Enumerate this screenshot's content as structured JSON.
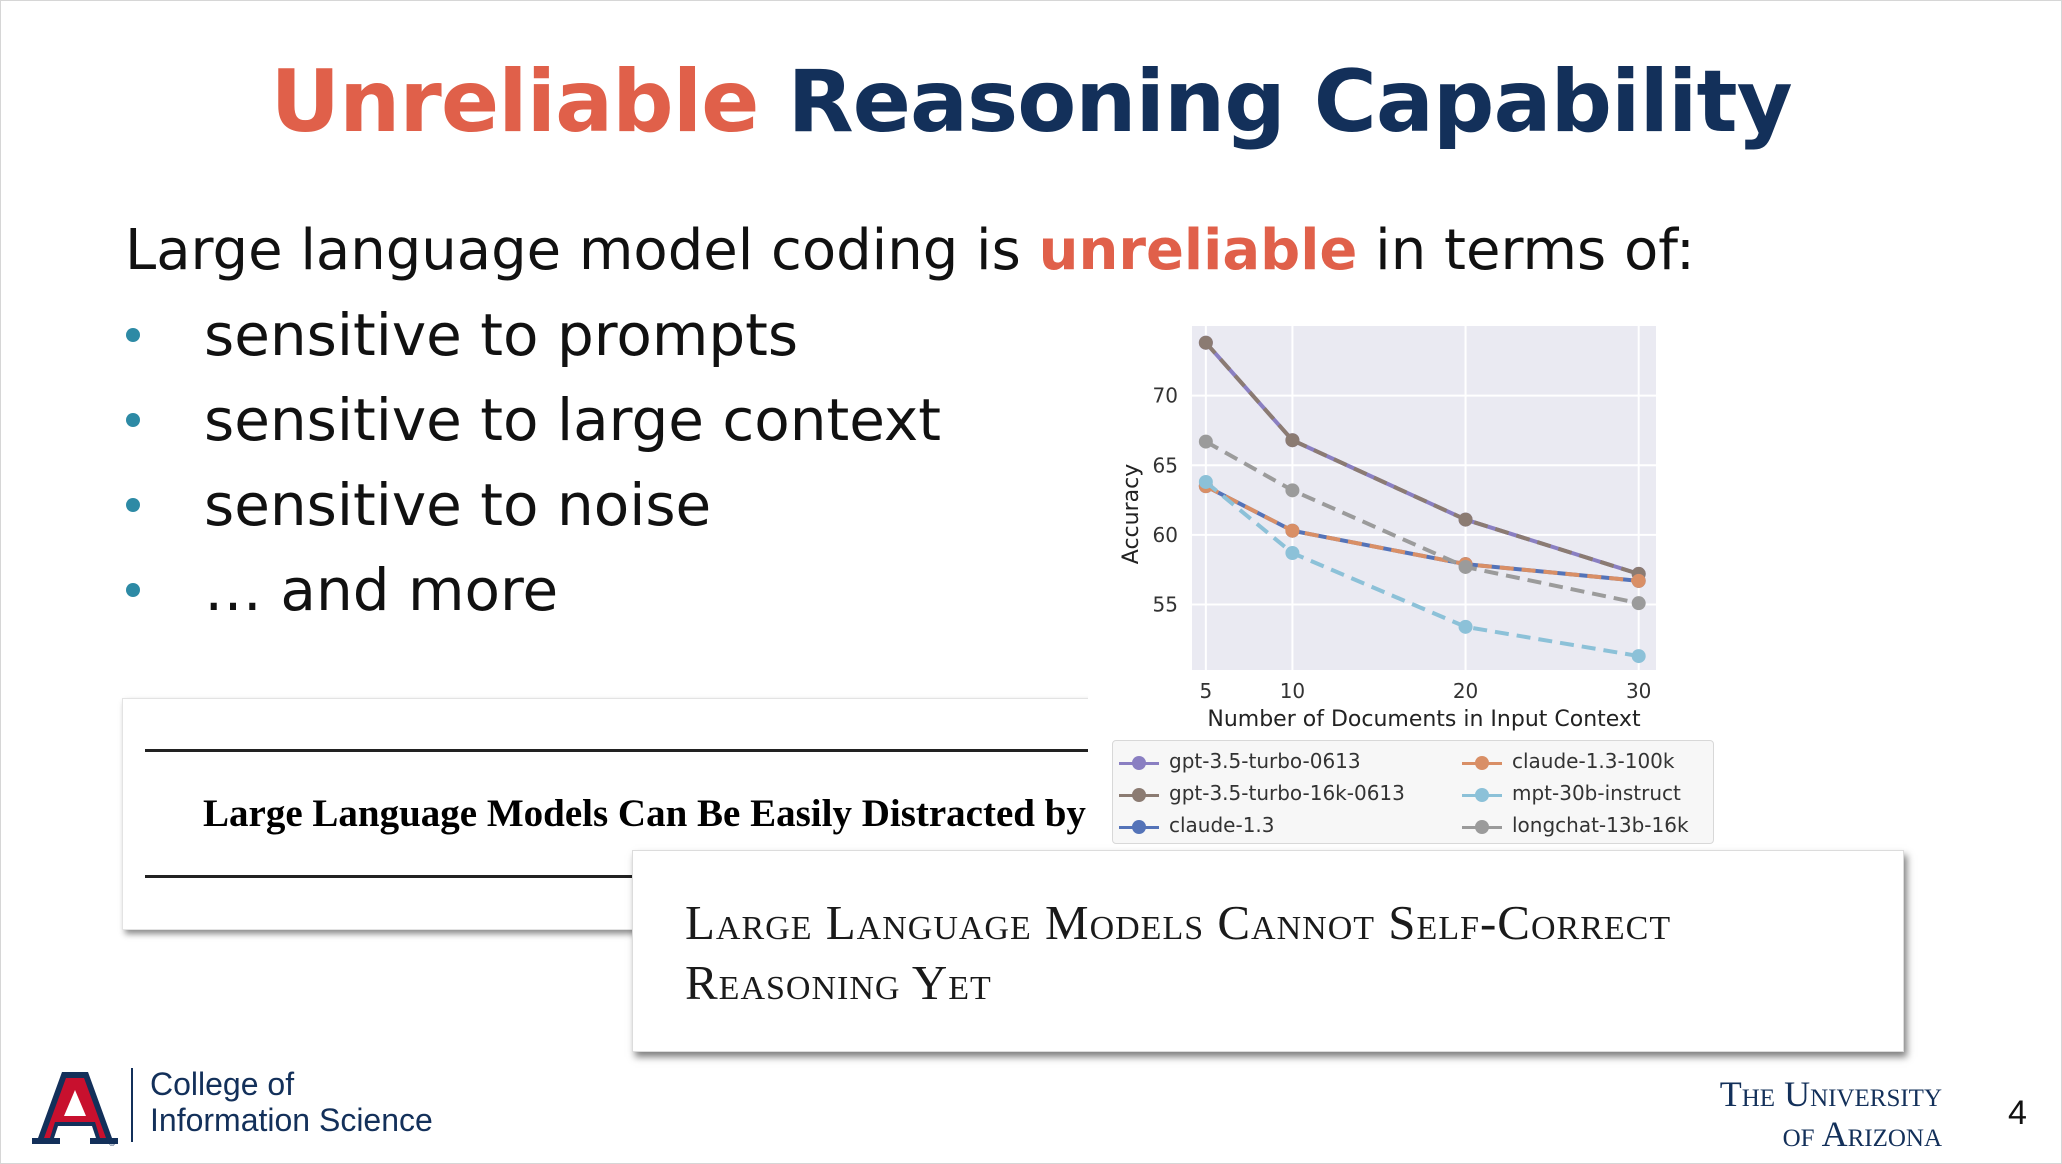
{
  "slide": {
    "title_highlight": "Unreliable",
    "title_rest": "Reasoning Capability",
    "lead_pre": "Large language model coding is ",
    "lead_highlight": "unreliable",
    "lead_post": " in terms of:",
    "bullets": [
      "sensitive to prompts",
      "sensitive to large context",
      "sensitive to noise",
      "… and more"
    ],
    "paper1_title": "Large Language Models Can Be Easily Distracted by I",
    "paper2_line1": "Large Language Models Cannot Self-Correct",
    "paper2_line2": "Reasoning Yet",
    "college_line1": "College of",
    "college_line2": "Information Science",
    "ua_line1": "The University",
    "ua_line2": "of Arizona",
    "page_number": "4",
    "logo_letter": "A"
  },
  "colors": {
    "accent_red": "#e0604a",
    "navy": "#13305a",
    "bullet": "#2d8aa5"
  },
  "chart_data": {
    "type": "line",
    "xlabel": "Number of Documents in Input Context",
    "ylabel": "Accuracy",
    "x": [
      5,
      10,
      20,
      30
    ],
    "x_ticks": [
      "5",
      "10",
      "20",
      "30"
    ],
    "y_ticks": [
      "55",
      "60",
      "65",
      "70"
    ],
    "xlim": [
      4.2,
      31
    ],
    "ylim": [
      50.3,
      75
    ],
    "grid": true,
    "legend_placement": "below",
    "series": [
      {
        "name": "gpt-3.5-turbo-0613",
        "values": [
          73.8,
          66.8,
          61.1,
          57.2
        ],
        "color": "#8a7fc2",
        "dashed": false
      },
      {
        "name": "gpt-3.5-turbo-16k-0613",
        "values": [
          73.8,
          66.8,
          61.1,
          57.2
        ],
        "color": "#8b7b72",
        "dashed": true
      },
      {
        "name": "claude-1.3",
        "values": [
          63.5,
          60.3,
          57.9,
          56.7
        ],
        "color": "#5473b8",
        "dashed": false
      },
      {
        "name": "claude-1.3-100k",
        "values": [
          63.5,
          60.3,
          57.9,
          56.7
        ],
        "color": "#d98f66",
        "dashed": true
      },
      {
        "name": "mpt-30b-instruct",
        "values": [
          63.8,
          58.7,
          53.4,
          51.3
        ],
        "color": "#8cc1d8",
        "dashed": true
      },
      {
        "name": "longchat-13b-16k",
        "values": [
          66.7,
          63.2,
          57.7,
          55.1
        ],
        "color": "#9b9b9b",
        "dashed": true
      }
    ]
  }
}
